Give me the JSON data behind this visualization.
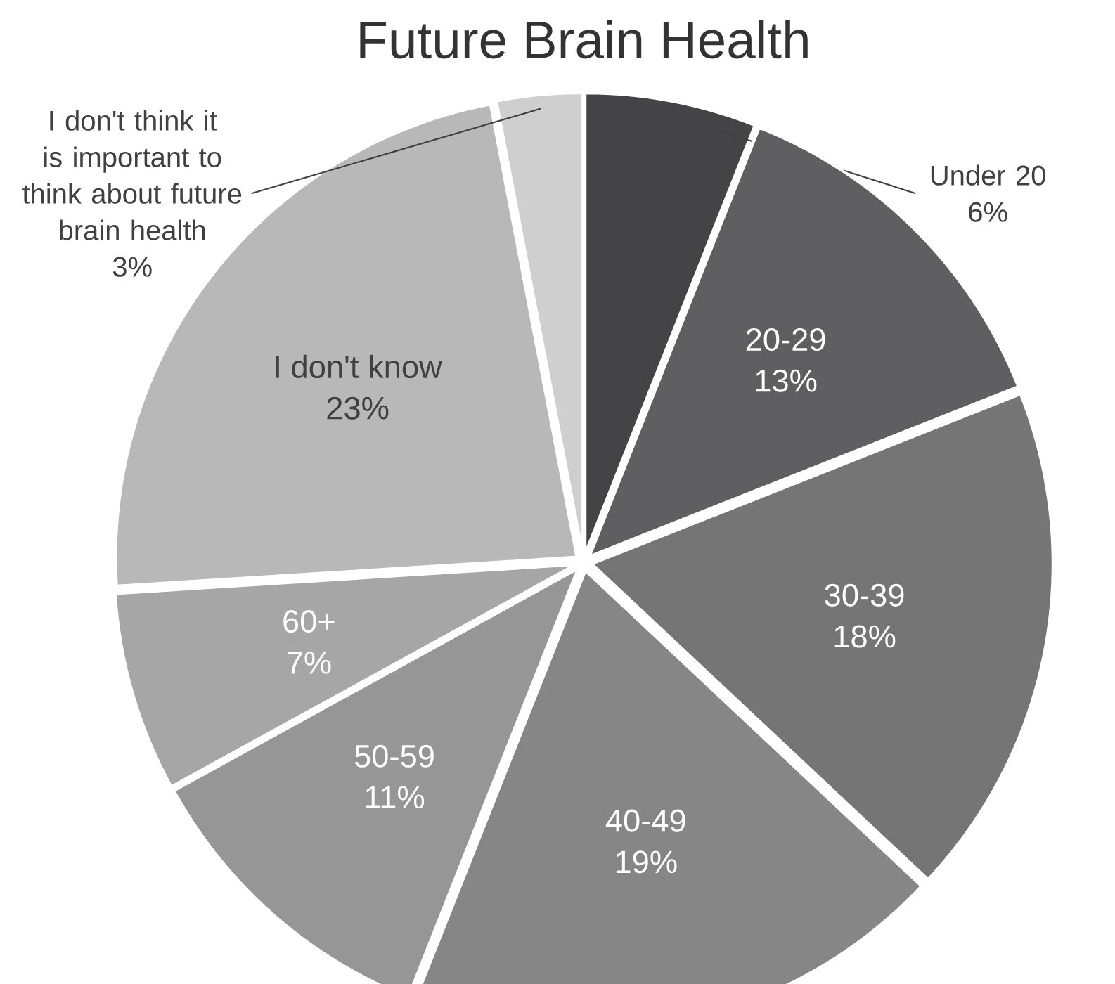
{
  "chart_data": {
    "type": "pie",
    "title": "Future Brain Health",
    "categories": [
      "Under 20",
      "20-29",
      "30-39",
      "40-49",
      "50-59",
      "60+",
      "I don't know",
      "I don't think it is important to think about future brain health"
    ],
    "values": [
      6,
      13,
      18,
      19,
      11,
      7,
      23,
      3
    ],
    "value_labels": [
      "6%",
      "13%",
      "18%",
      "19%",
      "11%",
      "7%",
      "23%",
      "3%"
    ],
    "colors": [
      "#444446",
      "#5f5f61",
      "#757575",
      "#868686",
      "#969696",
      "#a6a6a6",
      "#b8b8b8",
      "#cfcfcf"
    ]
  }
}
